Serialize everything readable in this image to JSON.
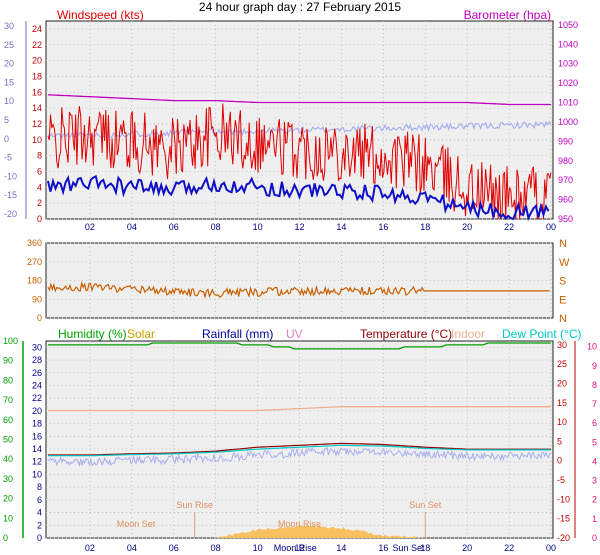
{
  "title": "24 hour graph day : 27 February 2015",
  "colors": {
    "wind": "#e00000",
    "wind_avg": "#1010c8",
    "barometer": "#c000c0",
    "dewpoint_trace": "#a8b0f0",
    "direction": "#c86000",
    "humidity": "#00a000",
    "solar": "#c8a000",
    "rainfall": "#000090",
    "uv": "#e080c0",
    "temperature": "#900000",
    "indoor": "#f0b090",
    "dew_point": "#00c8c8",
    "axis_blue": "#7070c0",
    "axis_red": "#c00000",
    "axis_green": "#00a000",
    "axis_pink": "#e01070",
    "axis_olive": "#807000"
  },
  "x_ticks": [
    "02",
    "04",
    "06",
    "08",
    "10",
    "12",
    "14",
    "16",
    "18",
    "20",
    "22",
    "00"
  ],
  "panel1": {
    "left_label": "Windspeed (kts)",
    "right_label": "Barometer (hpa)",
    "left_ticks": [
      "0",
      "2",
      "4",
      "6",
      "8",
      "10",
      "12",
      "14",
      "16",
      "18",
      "20",
      "22",
      "24"
    ],
    "right_ticks": [
      "950",
      "960",
      "970",
      "980",
      "990",
      "1000",
      "1010",
      "1020",
      "1030",
      "1040",
      "1050"
    ],
    "far_left_ticks": [
      "30",
      "25",
      "20",
      "15",
      "10",
      "5",
      "0",
      "-5",
      "-10",
      "-15",
      "-20"
    ]
  },
  "panel2": {
    "left_ticks": [
      "0",
      "90",
      "180",
      "270",
      "360"
    ],
    "right_ticks": [
      "N",
      "W",
      "S",
      "E",
      "N"
    ]
  },
  "panel3": {
    "legend": [
      {
        "label": "Humidity (%)",
        "color_key": "humidity"
      },
      {
        "label": "Solar",
        "color_key": "solar"
      },
      {
        "label": "Rainfall (mm)",
        "color_key": "rainfall"
      },
      {
        "label": "UV",
        "color_key": "uv"
      },
      {
        "label": "Temperature (°C)",
        "color_key": "temperature"
      },
      {
        "label": "Indoor",
        "color_key": "indoor"
      },
      {
        "label": "Dew Point (°C)",
        "color_key": "dew_point"
      }
    ],
    "humidity_ticks": [
      "0",
      "10",
      "20",
      "30",
      "40",
      "50",
      "60",
      "70",
      "80",
      "90",
      "100"
    ],
    "rain_ticks": [
      "0",
      "2",
      "4",
      "6",
      "8",
      "10",
      "12",
      "14",
      "16",
      "18",
      "20",
      "22",
      "24",
      "26",
      "28",
      "30"
    ],
    "temp_ticks": [
      "-20",
      "-15",
      "-10",
      "-5",
      "0",
      "5",
      "10",
      "15",
      "20",
      "25",
      "30"
    ],
    "uv_ticks": [
      "0",
      "1",
      "2",
      "3",
      "4",
      "5",
      "6",
      "7",
      "8",
      "9",
      "10"
    ],
    "annotations": [
      "Moon Set",
      "Sun Rise",
      "Moon Rise",
      "Sun Set"
    ],
    "bottom_labels": [
      "Moon Rise",
      "Sun Set"
    ]
  },
  "chart_data": [
    {
      "type": "line",
      "title": "24 hour graph day : 27 February 2015",
      "ylabel": "Windspeed (kts)",
      "y2label": "Barometer (hpa)",
      "ylim": [
        0,
        25
      ],
      "y2lim": [
        950,
        1050
      ],
      "x": [
        "00",
        "02",
        "04",
        "06",
        "08",
        "10",
        "12",
        "14",
        "16",
        "18",
        "20",
        "22",
        "00"
      ],
      "series": [
        {
          "name": "Windspeed (kts)",
          "values": [
            9,
            10,
            9,
            8,
            10,
            9,
            8,
            8,
            7,
            6,
            3,
            2,
            2
          ]
        },
        {
          "name": "Barometer (hpa)",
          "values": [
            1014,
            1013,
            1012,
            1011,
            1011,
            1010,
            1010,
            1010,
            1010,
            1010,
            1010,
            1009,
            1009
          ]
        }
      ]
    },
    {
      "type": "line",
      "ylim": [
        0,
        360
      ],
      "x": [
        "00",
        "02",
        "04",
        "06",
        "08",
        "10",
        "12",
        "14",
        "16",
        "18",
        "20",
        "22",
        "00"
      ],
      "series": [
        {
          "values": [
            145,
            150,
            140,
            125,
            120,
            125,
            130,
            130,
            130,
            130,
            130,
            130,
            130
          ]
        }
      ]
    },
    {
      "type": "line",
      "ylim": [
        -20,
        30
      ],
      "x": [
        "00",
        "02",
        "04",
        "06",
        "08",
        "10",
        "12",
        "14",
        "16",
        "18",
        "20",
        "22",
        "00"
      ],
      "series": [
        {
          "name": "Humidity (%)",
          "values": [
            98,
            98,
            98,
            99,
            99,
            98,
            96,
            96,
            96,
            97,
            98,
            99,
            99
          ]
        },
        {
          "name": "Temperature (°C)",
          "values": [
            1.5,
            1.5,
            1.8,
            2.0,
            2.5,
            3.5,
            4.0,
            4.5,
            4.2,
            3.5,
            3.0,
            3.0,
            3.0
          ]
        },
        {
          "name": "Indoor",
          "values": [
            13,
            13,
            13,
            13,
            13,
            13,
            13.5,
            14,
            14,
            14,
            14,
            14,
            14
          ]
        },
        {
          "name": "Dew Point (°C)",
          "values": [
            1.3,
            1.3,
            1.6,
            1.8,
            2.2,
            3.0,
            3.5,
            4.0,
            3.8,
            3.2,
            2.8,
            2.8,
            2.8
          ]
        },
        {
          "name": "Solar",
          "values": [
            0,
            0,
            0,
            0,
            0,
            8,
            12,
            10,
            3,
            0,
            0,
            0,
            0
          ]
        }
      ]
    }
  ]
}
